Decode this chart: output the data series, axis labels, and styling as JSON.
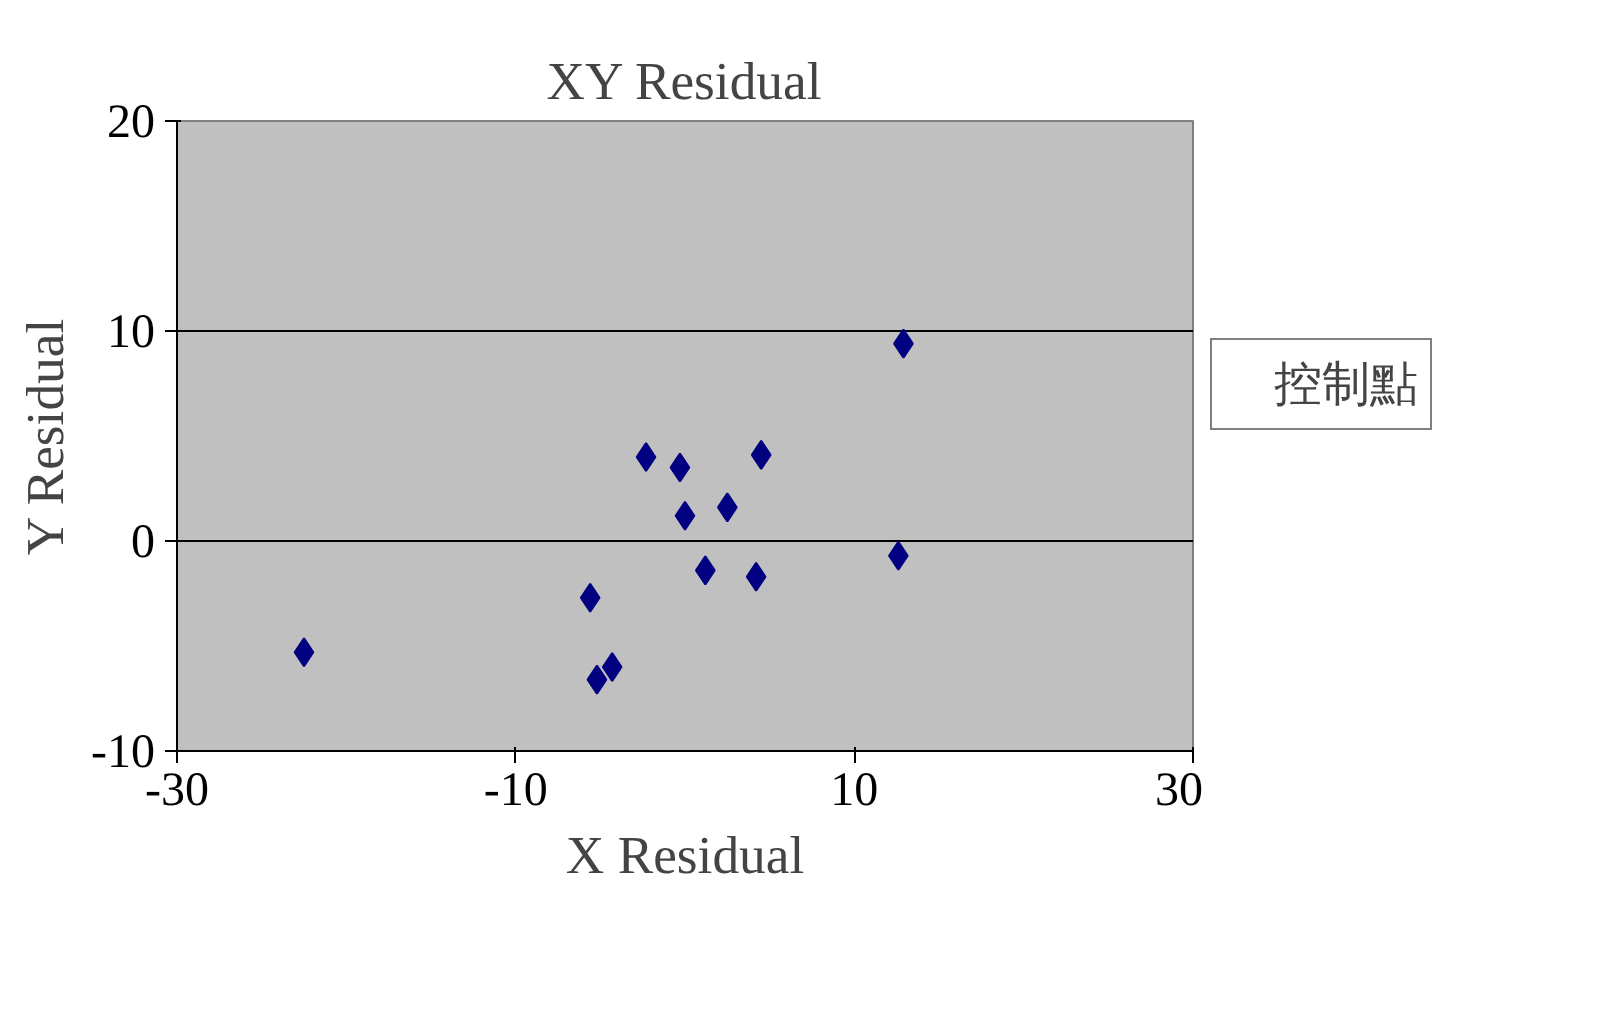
{
  "chart_data": {
    "type": "scatter",
    "title": "XY Residual",
    "xlabel": "X Residual",
    "ylabel": "Y Residual",
    "x": [
      -22.5,
      -5.6,
      -5.2,
      -4.3,
      -2.3,
      -0.3,
      0.0,
      1.2,
      2.5,
      4.2,
      4.5,
      12.6,
      12.9
    ],
    "series": [
      {
        "name": "控制點",
        "color": "#000080",
        "values": [
          -5.3,
          -2.7,
          -6.6,
          -6.0,
          4.0,
          3.5,
          1.2,
          -1.4,
          1.6,
          -1.7,
          4.1,
          -0.7,
          9.4
        ]
      }
    ],
    "xlim": [
      -30,
      30
    ],
    "xticks": [
      -30,
      -10,
      10,
      30
    ],
    "ylim": [
      -10,
      20
    ],
    "yticks": [
      -10,
      0,
      10,
      20
    ],
    "grid": "y",
    "legend": "right",
    "marker": "diamond"
  }
}
